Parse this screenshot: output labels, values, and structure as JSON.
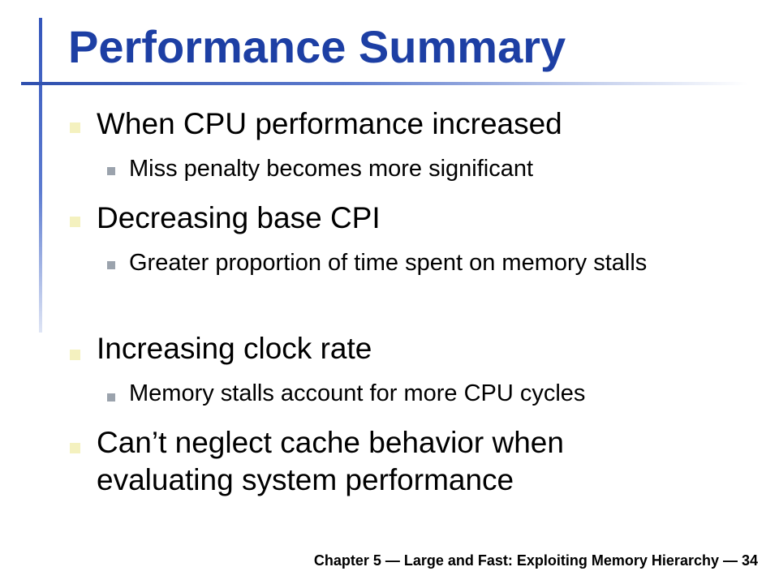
{
  "slide": {
    "title": "Performance Summary",
    "bullets": [
      {
        "text": "When CPU performance increased",
        "sub": [
          "Miss penalty becomes more significant"
        ]
      },
      {
        "text": "Decreasing base CPI",
        "sub": [
          "Greater proportion of time spent on memory stalls"
        ]
      },
      {
        "text": "Increasing clock rate",
        "sub": [
          "Memory stalls account for more CPU cycles"
        ]
      },
      {
        "text": "Can’t neglect cache behavior when evaluating system performance",
        "sub": []
      }
    ],
    "footer": "Chapter 5 — Large and Fast: Exploiting Memory Hierarchy — 34"
  },
  "colors": {
    "title": "#1d3fa4",
    "accent_line": "#2e4fae",
    "bullet_level1": "#f4f1bf",
    "bullet_level2": "#9ba3ad"
  }
}
